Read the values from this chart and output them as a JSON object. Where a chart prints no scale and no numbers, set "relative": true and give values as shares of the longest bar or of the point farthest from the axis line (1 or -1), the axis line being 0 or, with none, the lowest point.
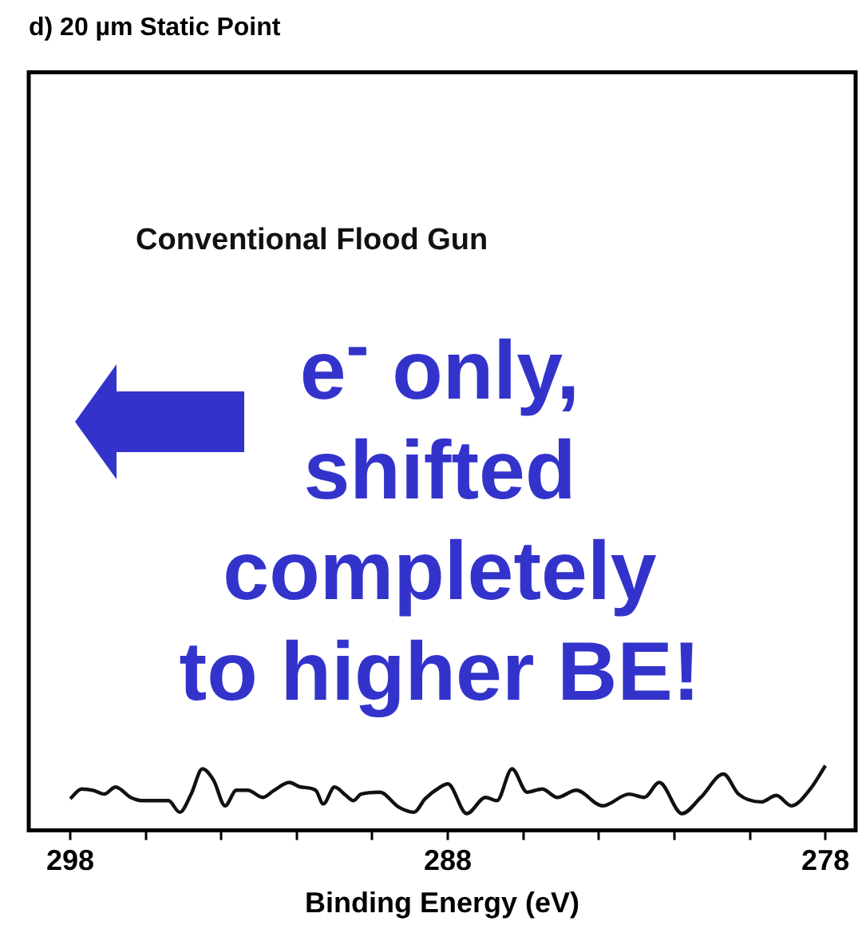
{
  "chart_data": {
    "type": "line",
    "title": "d) 20 µm Static Point",
    "xlabel": "Binding Energy (eV)",
    "relative": true,
    "xlim": [
      299.1,
      277.2
    ],
    "xticks": [
      298,
      {
        "value": 296,
        "label": null
      },
      {
        "value": 294,
        "label": null
      },
      {
        "value": 292,
        "label": null
      },
      {
        "value": 290,
        "label": null
      },
      288,
      {
        "value": 286,
        "label": null
      },
      {
        "value": 284,
        "label": null
      },
      {
        "value": 282,
        "label": null
      },
      {
        "value": 280,
        "label": null
      },
      278
    ],
    "grid": false,
    "legend": false,
    "marker": "none",
    "line_style": "solid",
    "annotations": [
      "Conventional Flood Gun",
      "e$^{-}$ only, shifted completely to higher BE!"
    ],
    "series": [
      {
        "color": "#111111",
        "x": [
          298.0,
          297.7,
          297.4,
          297.1,
          296.8,
          296.4,
          296.1,
          295.7,
          295.4,
          295.1,
          294.8,
          294.5,
          294.2,
          293.9,
          293.6,
          293.3,
          292.9,
          292.6,
          292.2,
          291.9,
          291.5,
          291.3,
          291.0,
          290.7,
          290.5,
          290.3,
          289.8,
          289.3,
          288.9,
          288.6,
          288.2,
          288.0,
          287.5,
          287.0,
          286.7,
          286.3,
          285.9,
          285.5,
          285.1,
          284.6,
          283.9,
          283.2,
          282.8,
          282.4,
          281.8,
          281.3,
          280.7,
          280.3,
          279.7,
          279.3,
          278.9,
          278.4,
          278.0
        ],
        "values": [
          0.49,
          0.64,
          0.62,
          0.56,
          0.67,
          0.51,
          0.46,
          0.46,
          0.46,
          0.28,
          0.56,
          0.95,
          0.77,
          0.38,
          0.62,
          0.62,
          0.51,
          0.62,
          0.74,
          0.67,
          0.62,
          0.41,
          0.67,
          0.54,
          0.46,
          0.56,
          0.59,
          0.36,
          0.28,
          0.49,
          0.67,
          0.72,
          0.26,
          0.51,
          0.46,
          0.95,
          0.59,
          0.64,
          0.51,
          0.62,
          0.38,
          0.56,
          0.51,
          0.74,
          0.26,
          0.51,
          0.87,
          0.56,
          0.44,
          0.54,
          0.38,
          0.64,
          1
        ]
      }
    ]
  }
}
